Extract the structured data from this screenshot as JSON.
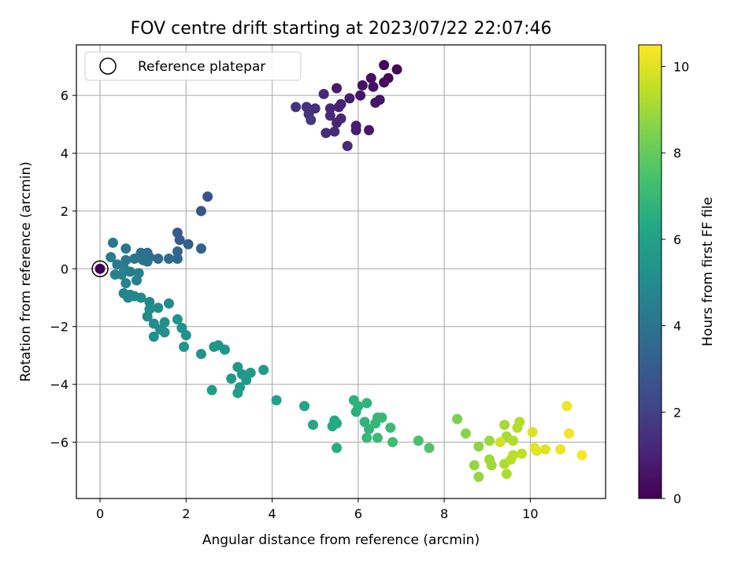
{
  "chart_data": {
    "type": "scatter",
    "title": "FOV centre drift starting at 2023/07/22 22:07:46",
    "xlabel": "Angular distance from reference (arcmin)",
    "ylabel": "Rotation from reference (arcmin)",
    "xlim": [
      -0.55,
      11.75
    ],
    "ylim": [
      -7.95,
      7.75
    ],
    "xticks": [
      0,
      2,
      4,
      6,
      8,
      10
    ],
    "yticks": [
      -6,
      -4,
      -2,
      0,
      2,
      4,
      6
    ],
    "grid": true,
    "legend": {
      "label": "Reference platepar",
      "position": "top-left",
      "marker": "open-circle"
    },
    "colorbar": {
      "label": "Hours from first FF file",
      "range": [
        0,
        10.5
      ],
      "ticks": [
        0,
        2,
        4,
        6,
        8,
        10
      ],
      "colormap": "viridis"
    },
    "reference_point": {
      "x": 0,
      "y": 0
    },
    "points": [
      [
        0.0,
        0.0,
        0.0
      ],
      [
        6.6,
        7.05,
        0.2
      ],
      [
        6.7,
        6.6,
        0.2
      ],
      [
        6.9,
        6.9,
        0.2
      ],
      [
        6.6,
        6.45,
        0.3
      ],
      [
        6.3,
        6.6,
        0.4
      ],
      [
        6.1,
        6.35,
        0.5
      ],
      [
        6.35,
        6.3,
        0.5
      ],
      [
        6.05,
        6.0,
        0.6
      ],
      [
        6.4,
        5.75,
        0.6
      ],
      [
        6.5,
        5.85,
        0.6
      ],
      [
        6.25,
        4.8,
        0.7
      ],
      [
        5.8,
        5.9,
        0.8
      ],
      [
        5.5,
        6.25,
        0.8
      ],
      [
        5.95,
        4.95,
        0.9
      ],
      [
        5.95,
        4.8,
        0.9
      ],
      [
        5.55,
        5.6,
        1.0
      ],
      [
        5.6,
        5.7,
        1.0
      ],
      [
        5.35,
        5.55,
        1.1
      ],
      [
        5.6,
        5.2,
        1.1
      ],
      [
        5.5,
        5.05,
        1.1
      ],
      [
        5.2,
        6.05,
        1.2
      ],
      [
        5.35,
        5.3,
        1.2
      ],
      [
        5.45,
        4.75,
        1.3
      ],
      [
        5.25,
        4.7,
        1.3
      ],
      [
        5.75,
        4.25,
        1.3
      ],
      [
        5.0,
        5.55,
        1.4
      ],
      [
        4.55,
        5.6,
        1.5
      ],
      [
        4.8,
        5.6,
        1.5
      ],
      [
        4.85,
        5.35,
        1.6
      ],
      [
        4.9,
        5.15,
        1.7
      ],
      [
        2.5,
        2.5,
        2.6
      ],
      [
        2.35,
        2.0,
        2.8
      ],
      [
        1.8,
        1.25,
        2.9
      ],
      [
        1.85,
        1.0,
        3.0
      ],
      [
        2.05,
        0.85,
        3.2
      ],
      [
        2.35,
        0.7,
        3.3
      ],
      [
        1.8,
        0.6,
        3.4
      ],
      [
        1.8,
        0.35,
        3.5
      ],
      [
        1.6,
        0.35,
        3.6
      ],
      [
        1.35,
        0.35,
        3.7
      ],
      [
        1.1,
        0.55,
        3.8
      ],
      [
        1.15,
        0.4,
        3.8
      ],
      [
        0.95,
        0.55,
        3.9
      ],
      [
        1.0,
        0.3,
        4.0
      ],
      [
        1.1,
        0.25,
        4.0
      ],
      [
        0.8,
        0.35,
        4.1
      ],
      [
        0.6,
        0.7,
        4.1
      ],
      [
        0.6,
        0.3,
        4.2
      ],
      [
        0.3,
        0.9,
        4.2
      ],
      [
        0.25,
        0.4,
        4.3
      ],
      [
        0.4,
        0.15,
        4.3
      ],
      [
        0.55,
        0.05,
        4.4
      ],
      [
        0.7,
        -0.1,
        4.4
      ],
      [
        0.9,
        -0.15,
        4.5
      ],
      [
        0.85,
        -0.4,
        4.5
      ],
      [
        0.6,
        -0.5,
        4.6
      ],
      [
        0.5,
        -0.2,
        4.6
      ],
      [
        0.35,
        -0.2,
        4.6
      ],
      [
        0.55,
        -0.85,
        4.7
      ],
      [
        0.7,
        -0.9,
        4.7
      ],
      [
        0.65,
        -1.0,
        4.8
      ],
      [
        0.8,
        -0.95,
        4.8
      ],
      [
        0.95,
        -1.0,
        4.9
      ],
      [
        1.15,
        -1.15,
        4.9
      ],
      [
        1.15,
        -1.4,
        5.0
      ],
      [
        1.1,
        -1.65,
        5.0
      ],
      [
        1.35,
        -1.35,
        5.0
      ],
      [
        1.6,
        -1.2,
        5.1
      ],
      [
        1.25,
        -1.9,
        5.1
      ],
      [
        1.4,
        -2.1,
        5.1
      ],
      [
        1.5,
        -2.2,
        5.2
      ],
      [
        1.25,
        -2.35,
        5.2
      ],
      [
        1.5,
        -1.85,
        5.2
      ],
      [
        1.8,
        -1.75,
        5.3
      ],
      [
        1.9,
        -2.05,
        5.3
      ],
      [
        2.0,
        -2.3,
        5.3
      ],
      [
        1.95,
        -2.7,
        5.4
      ],
      [
        2.35,
        -2.95,
        5.4
      ],
      [
        2.65,
        -2.7,
        5.5
      ],
      [
        2.75,
        -2.65,
        5.5
      ],
      [
        2.9,
        -2.8,
        5.5
      ],
      [
        3.2,
        -3.4,
        5.6
      ],
      [
        3.3,
        -3.65,
        5.6
      ],
      [
        3.05,
        -3.8,
        5.6
      ],
      [
        3.25,
        -4.1,
        5.7
      ],
      [
        3.4,
        -3.85,
        5.7
      ],
      [
        3.5,
        -3.6,
        5.7
      ],
      [
        3.8,
        -3.5,
        5.7
      ],
      [
        3.2,
        -4.3,
        5.8
      ],
      [
        2.6,
        -4.2,
        5.8
      ],
      [
        4.1,
        -4.55,
        6.0
      ],
      [
        4.75,
        -4.75,
        6.2
      ],
      [
        4.95,
        -5.4,
        6.3
      ],
      [
        5.45,
        -5.25,
        6.3
      ],
      [
        5.5,
        -5.35,
        6.4
      ],
      [
        5.4,
        -5.45,
        6.4
      ],
      [
        5.5,
        -6.2,
        6.5
      ],
      [
        5.95,
        -4.95,
        6.6
      ],
      [
        5.9,
        -4.55,
        6.7
      ],
      [
        6.0,
        -4.75,
        6.7
      ],
      [
        6.2,
        -4.65,
        6.8
      ],
      [
        6.15,
        -5.3,
        6.8
      ],
      [
        6.25,
        -5.55,
        6.8
      ],
      [
        6.4,
        -5.35,
        6.9
      ],
      [
        6.45,
        -5.15,
        6.9
      ],
      [
        6.55,
        -5.15,
        7.0
      ],
      [
        6.2,
        -5.85,
        7.0
      ],
      [
        6.45,
        -5.85,
        7.1
      ],
      [
        6.75,
        -5.5,
        7.1
      ],
      [
        6.8,
        -6.0,
        7.2
      ],
      [
        7.4,
        -5.95,
        7.4
      ],
      [
        7.65,
        -6.2,
        7.6
      ],
      [
        8.3,
        -5.2,
        8.4
      ],
      [
        8.5,
        -5.7,
        8.6
      ],
      [
        8.8,
        -6.15,
        8.7
      ],
      [
        8.7,
        -6.8,
        8.8
      ],
      [
        8.8,
        -7.2,
        8.8
      ],
      [
        9.05,
        -5.95,
        8.9
      ],
      [
        9.05,
        -6.6,
        9.0
      ],
      [
        9.1,
        -6.8,
        9.0
      ],
      [
        9.4,
        -5.4,
        9.1
      ],
      [
        9.45,
        -5.8,
        9.1
      ],
      [
        9.4,
        -6.75,
        9.2
      ],
      [
        9.45,
        -7.1,
        9.2
      ],
      [
        9.6,
        -5.95,
        9.3
      ],
      [
        9.75,
        -5.3,
        9.3
      ],
      [
        9.7,
        -5.5,
        9.3
      ],
      [
        9.6,
        -6.45,
        9.4
      ],
      [
        9.55,
        -6.6,
        9.4
      ],
      [
        9.8,
        -6.4,
        9.5
      ],
      [
        9.3,
        -6.0,
        9.8
      ],
      [
        10.05,
        -5.65,
        9.9
      ],
      [
        10.1,
        -6.2,
        10.0
      ],
      [
        10.35,
        -6.25,
        10.0
      ],
      [
        10.15,
        -6.3,
        10.1
      ],
      [
        10.7,
        -6.25,
        10.2
      ],
      [
        10.85,
        -4.75,
        10.3
      ],
      [
        10.9,
        -5.7,
        10.3
      ],
      [
        11.2,
        -6.45,
        10.4
      ]
    ]
  }
}
